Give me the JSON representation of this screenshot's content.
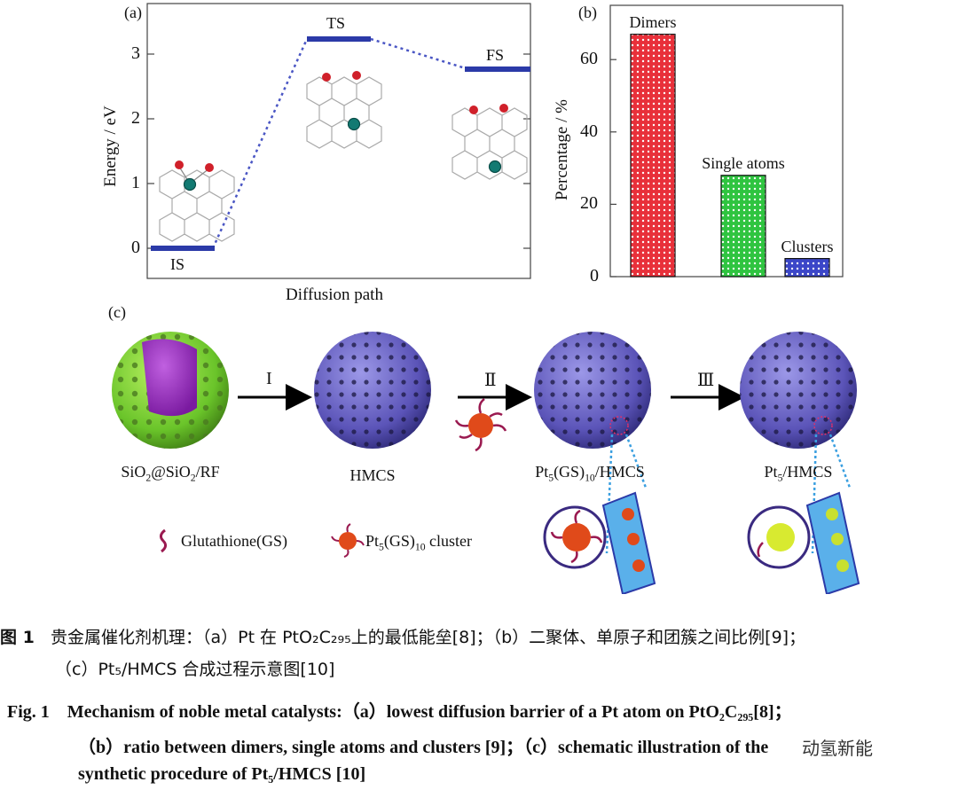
{
  "panel_a": {
    "label": "(a)",
    "ylabel": "Energy / eV",
    "xlabel": "Diffusion path",
    "yticks": [
      "0",
      "1",
      "2",
      "3"
    ],
    "states": [
      {
        "name": "IS",
        "energy": 0.0
      },
      {
        "name": "TS",
        "energy": 3.22
      },
      {
        "name": "FS",
        "energy": 2.75
      }
    ]
  },
  "chart_data": {
    "type": "bar",
    "categories": [
      "Dimers",
      "Single atoms",
      "Clusters"
    ],
    "values": [
      67,
      28,
      5
    ],
    "ylabel": "Percentage / %",
    "ylim": [
      0,
      75
    ],
    "yticks": [
      "0",
      "20",
      "40",
      "60"
    ],
    "colors": [
      "#e8303a",
      "#2fc440",
      "#3b46c8"
    ],
    "grid": false,
    "label": "(b)"
  },
  "panel_c": {
    "label": "(c)",
    "steps": [
      "I",
      "Ⅱ",
      "Ⅲ"
    ],
    "stages": [
      "SiO2@SiO2/RF",
      "HMCS",
      "Pt5(GS)10/HMCS",
      "Pt5/HMCS"
    ],
    "legend": {
      "gs": "Glutathione(GS)",
      "cluster": "Pt5(GS)10 cluster"
    }
  },
  "caption": {
    "cn_fig": "图 1",
    "cn_line1": "贵金属催化剂机理：（a）Pt 在 PtO₂C₂₉₅上的最低能垒[8]；（b）二聚体、单原子和团簇之间比例[9]；",
    "cn_line2": "（c）Pt₅/HMCS 合成过程示意图[10]",
    "en_fig": "Fig. 1",
    "en_line1": "Mechanism of noble metal catalysts:（a）lowest diffusion barrier of a Pt atom on PtO₂C₂₉₅[8]；",
    "en_line2": "（b）ratio between dimers, single atoms and clusters [9]；（c）schematic illustration of the",
    "en_line3": "synthetic procedure of Pt₅/HMCS [10]",
    "watermark": "动氢新能"
  }
}
